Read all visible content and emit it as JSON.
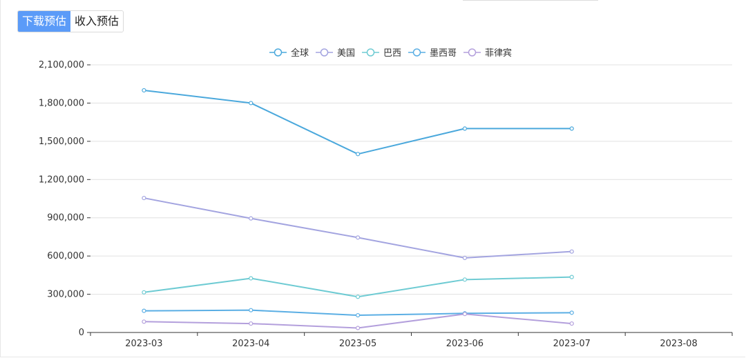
{
  "tabs": [
    {
      "label": "下载预估",
      "active": true
    },
    {
      "label": "收入预估",
      "active": false
    }
  ],
  "chart_data": {
    "type": "line",
    "x": [
      "2023-03",
      "2023-04",
      "2023-05",
      "2023-06",
      "2023-07",
      "2023-08"
    ],
    "ylim": [
      0,
      2100000
    ],
    "yticks": [
      0,
      300000,
      600000,
      900000,
      1200000,
      1500000,
      1800000,
      2100000
    ],
    "ytick_labels": [
      "0",
      "300,000",
      "600,000",
      "900,000",
      "1,200,000",
      "1,500,000",
      "1,800,000",
      "2,100,000"
    ],
    "grid": true,
    "legend_position": "top-center",
    "series": [
      {
        "name": "全球",
        "color": "#4aa8dc",
        "values": [
          1900000,
          1800000,
          1400000,
          1600000,
          1600000,
          null
        ]
      },
      {
        "name": "美国",
        "color": "#a3a4e0",
        "values": [
          1055000,
          895000,
          745000,
          585000,
          635000,
          null
        ]
      },
      {
        "name": "巴西",
        "color": "#6ecbd3",
        "values": [
          315000,
          425000,
          280000,
          415000,
          435000,
          null
        ]
      },
      {
        "name": "墨西哥",
        "color": "#5aaee4",
        "values": [
          170000,
          175000,
          135000,
          150000,
          155000,
          null
        ]
      },
      {
        "name": "菲律宾",
        "color": "#b39fdc",
        "values": [
          85000,
          70000,
          35000,
          145000,
          70000,
          null
        ]
      }
    ]
  }
}
